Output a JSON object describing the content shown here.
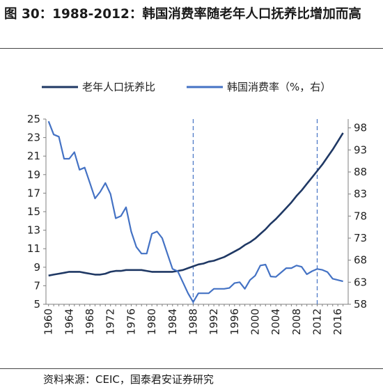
{
  "title": "图 30：1988-2012：韩国消费率随老年人口抚养比增加而高",
  "source": "资料来源：CEIC，国泰君安证券研究",
  "colors": {
    "old_age": "#1f3864",
    "consumption": "#4472c4",
    "guide": "#4472c4"
  },
  "chart_data": {
    "type": "line",
    "x_ticks": [
      1960,
      1964,
      1968,
      1972,
      1976,
      1980,
      1984,
      1988,
      1992,
      1996,
      2000,
      2004,
      2008,
      2012,
      2016
    ],
    "y_left": {
      "min": 5,
      "max": 25,
      "ticks": [
        5,
        7,
        9,
        11,
        13,
        15,
        17,
        19,
        21,
        23,
        25
      ]
    },
    "y_right": {
      "min": 58,
      "max": 100,
      "ticks": [
        58,
        63,
        68,
        73,
        78,
        83,
        88,
        93,
        98
      ]
    },
    "reference_years": [
      1988,
      2012
    ],
    "series": [
      {
        "name": "老年人口抚养比",
        "axis": "left",
        "x": [
          1960,
          1961,
          1962,
          1963,
          1964,
          1965,
          1966,
          1967,
          1968,
          1969,
          1970,
          1971,
          1972,
          1973,
          1974,
          1975,
          1976,
          1977,
          1978,
          1979,
          1980,
          1981,
          1982,
          1983,
          1984,
          1985,
          1986,
          1987,
          1988,
          1989,
          1990,
          1991,
          1992,
          1993,
          1994,
          1995,
          1996,
          1997,
          1998,
          1999,
          2000,
          2001,
          2002,
          2003,
          2004,
          2005,
          2006,
          2007,
          2008,
          2009,
          2010,
          2011,
          2012,
          2013,
          2014,
          2015,
          2016,
          2017
        ],
        "values": [
          8.1,
          8.2,
          8.3,
          8.4,
          8.5,
          8.5,
          8.5,
          8.4,
          8.3,
          8.2,
          8.2,
          8.3,
          8.5,
          8.6,
          8.6,
          8.7,
          8.7,
          8.7,
          8.7,
          8.6,
          8.5,
          8.5,
          8.5,
          8.5,
          8.5,
          8.6,
          8.7,
          8.9,
          9.1,
          9.3,
          9.4,
          9.6,
          9.7,
          9.9,
          10.1,
          10.4,
          10.7,
          11.0,
          11.4,
          11.7,
          12.1,
          12.6,
          13.1,
          13.7,
          14.2,
          14.8,
          15.4,
          16.0,
          16.7,
          17.3,
          18.0,
          18.7,
          19.4,
          20.1,
          20.9,
          21.7,
          22.6,
          23.5
        ]
      },
      {
        "name": "韩国消费率（%，右）",
        "axis": "right",
        "x": [
          1960,
          1961,
          1962,
          1963,
          1964,
          1965,
          1966,
          1967,
          1968,
          1969,
          1970,
          1971,
          1972,
          1973,
          1974,
          1975,
          1976,
          1977,
          1978,
          1979,
          1980,
          1981,
          1982,
          1983,
          1984,
          1985,
          1986,
          1987,
          1988,
          1989,
          1990,
          1991,
          1992,
          1993,
          1994,
          1995,
          1996,
          1997,
          1998,
          1999,
          2000,
          2001,
          2002,
          2003,
          2004,
          2005,
          2006,
          2007,
          2008,
          2009,
          2010,
          2011,
          2012,
          2013,
          2014,
          2015,
          2016,
          2017
        ],
        "values": [
          99.5,
          96.5,
          96.0,
          91.0,
          91.0,
          92.5,
          88.5,
          89.0,
          85.5,
          82.0,
          83.5,
          85.5,
          83.0,
          77.5,
          78.0,
          80.0,
          74.5,
          71.0,
          69.5,
          69.5,
          74.0,
          74.5,
          73.0,
          69.5,
          66.0,
          65.5,
          63.0,
          60.5,
          58.5,
          60.5,
          60.5,
          60.5,
          61.5,
          61.5,
          61.5,
          61.7,
          62.8,
          63.0,
          61.5,
          63.5,
          64.5,
          66.8,
          67.0,
          64.3,
          64.2,
          65.2,
          66.2,
          66.2,
          66.8,
          66.5,
          64.8,
          65.5,
          66.0,
          65.8,
          65.3,
          63.8,
          63.5,
          63.2
        ]
      }
    ]
  }
}
